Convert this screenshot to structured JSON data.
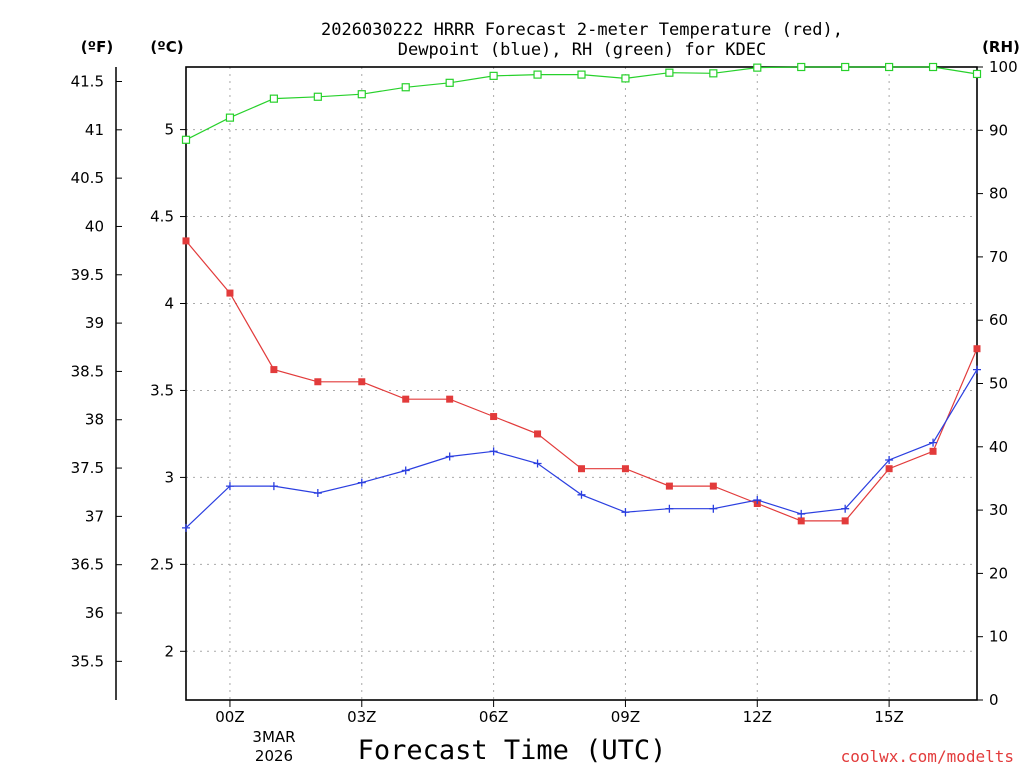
{
  "chart_data": {
    "type": "line",
    "title_line1": "2026030222 HRRR Forecast 2-meter Temperature (red),",
    "title_line2": "Dewpoint (blue), RH (green) for KDEC",
    "xlabel": "Forecast Time (UTC)",
    "credit": "coolwx.com/modelts",
    "unit_f": "(ºF)",
    "unit_c": "(ºC)",
    "unit_rh": "(RH)",
    "x": [
      -1,
      0,
      1,
      2,
      3,
      4,
      5,
      6,
      7,
      8,
      9,
      10,
      11,
      12,
      13,
      14,
      15,
      16,
      17
    ],
    "xlim": [
      -1,
      17
    ],
    "x_ticks": [
      {
        "value": 0,
        "label": "00Z"
      },
      {
        "value": 3,
        "label": "03Z"
      },
      {
        "value": 6,
        "label": "06Z"
      },
      {
        "value": 9,
        "label": "09Z"
      },
      {
        "value": 12,
        "label": "12Z"
      },
      {
        "value": 15,
        "label": "15Z"
      }
    ],
    "date_labels": [
      "3MAR",
      "2026"
    ],
    "celsius_axis": {
      "ylim": [
        1.72,
        5.36
      ],
      "ticks": [
        "2",
        "2.5",
        "3",
        "3.5",
        "4",
        "4.5",
        "5"
      ]
    },
    "fahrenheit_axis": {
      "ylim": [
        35.1,
        41.65
      ],
      "ticks": [
        "35.5",
        "36",
        "36.5",
        "37",
        "37.5",
        "38",
        "38.5",
        "39",
        "39.5",
        "40",
        "40.5",
        "41",
        "41.5"
      ]
    },
    "rh_axis": {
      "ylim": [
        0,
        100
      ],
      "ticks": [
        "0",
        "10",
        "20",
        "30",
        "40",
        "50",
        "60",
        "70",
        "80",
        "90",
        "100"
      ]
    },
    "series": [
      {
        "name": "Temperature",
        "color": "#e23b3b",
        "units": "C",
        "marker": "square-filled",
        "values": [
          4.36,
          4.06,
          3.62,
          3.55,
          3.55,
          3.45,
          3.45,
          3.35,
          3.25,
          3.05,
          3.05,
          2.95,
          2.95,
          2.85,
          2.75,
          2.75,
          3.05,
          3.15,
          3.74
        ]
      },
      {
        "name": "Dewpoint",
        "color": "#2b3fe0",
        "units": "C",
        "marker": "plus",
        "values": [
          2.71,
          2.95,
          2.95,
          2.91,
          2.97,
          3.04,
          3.12,
          3.15,
          3.08,
          2.9,
          2.8,
          2.82,
          2.82,
          2.87,
          2.79,
          2.82,
          3.1,
          3.2,
          3.62
        ]
      },
      {
        "name": "RH",
        "color": "#27d12b",
        "units": "%",
        "marker": "square-open",
        "values": [
          88.5,
          92.0,
          95.0,
          95.3,
          95.7,
          96.8,
          97.5,
          98.6,
          98.8,
          98.8,
          98.2,
          99.1,
          99.0,
          99.9,
          100,
          100,
          100,
          100,
          98.9
        ]
      }
    ]
  }
}
